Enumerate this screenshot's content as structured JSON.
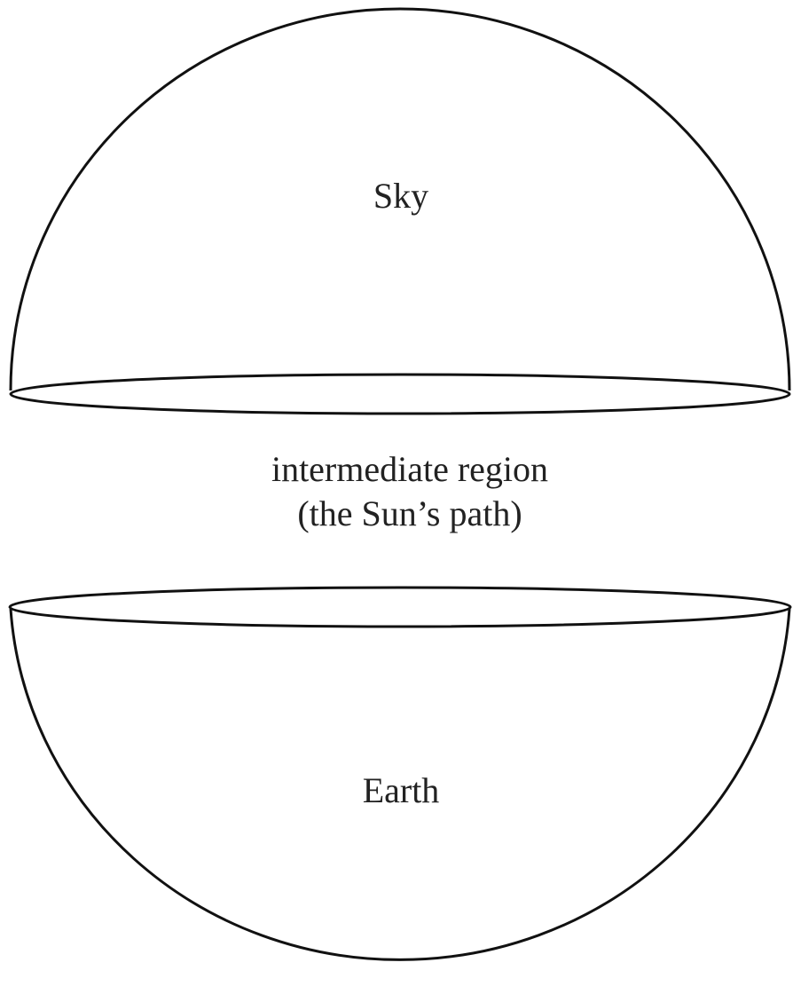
{
  "nodes": [
    {
      "label": "Sky"
    },
    {
      "label": "intermediate region"
    },
    {
      "label": "(the Sun’s path)"
    },
    {
      "label": "Earth"
    }
  ]
}
